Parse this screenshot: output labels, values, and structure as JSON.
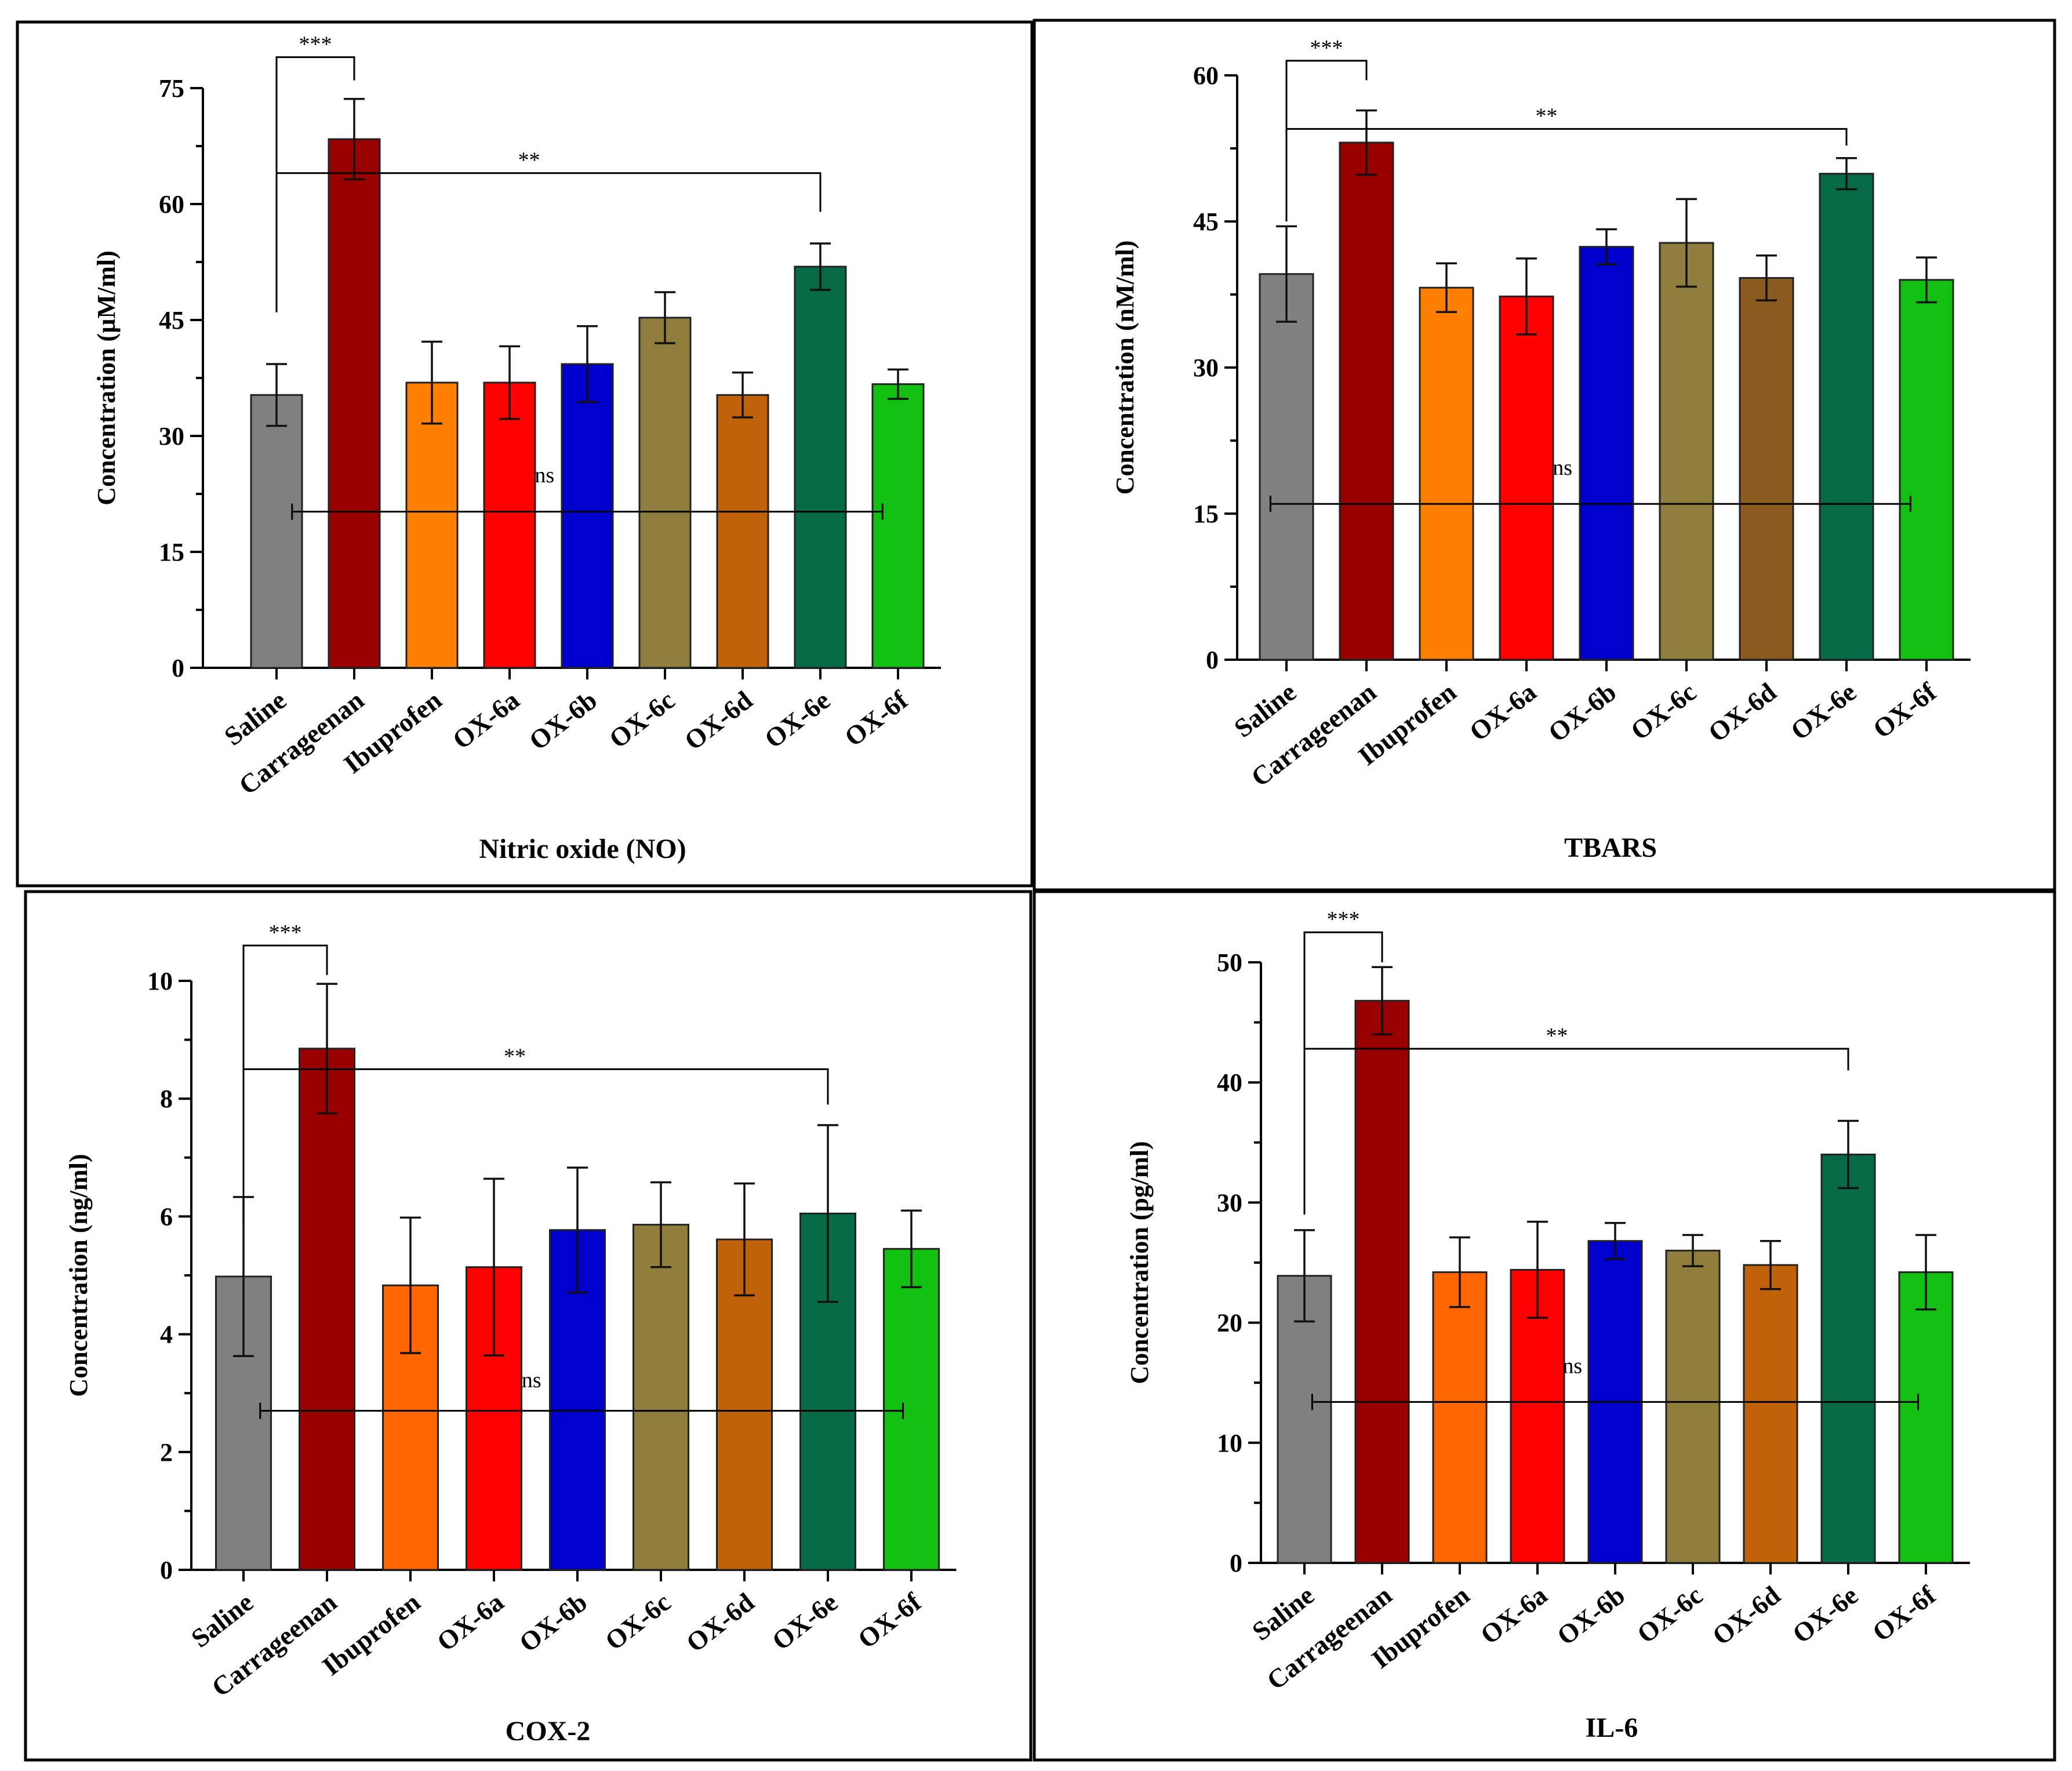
{
  "chart_data": [
    {
      "type": "bar",
      "title": "Nitric oxide (NO)",
      "ylabel": "Concentration (µM/ml)",
      "ylim": [
        0,
        75
      ],
      "yticks": [
        "0",
        "15",
        "30",
        "45",
        "60",
        "75"
      ],
      "categories": [
        "Saline",
        "Carrageenan",
        "Ibuprofen",
        "OX-6a",
        "OX-6b",
        "OX-6c",
        "OX-6d",
        "OX-6e",
        "OX-6f"
      ],
      "values": [
        35.3,
        68.4,
        36.9,
        36.9,
        39.3,
        45.3,
        35.3,
        51.9,
        36.7
      ],
      "error": [
        4,
        5.2,
        5.3,
        4.7,
        4.9,
        3.3,
        2.9,
        3.0,
        1.9
      ],
      "colors": [
        "#808080",
        "#990000",
        "#FF7F00",
        "#FF0000",
        "#0000CC",
        "#8E7D3C",
        "#C0620A",
        "#056A45",
        "#11C011"
      ],
      "annotations": [
        {
          "label": "***",
          "from": 0,
          "to": 1,
          "y": 79,
          "left_drop": 46,
          "right_drop": 76
        },
        {
          "label": "**",
          "from": 0,
          "to": 7,
          "y": 64,
          "left_drop": 46,
          "right_drop": 59
        },
        {
          "label": "ns",
          "from": 0.2,
          "to": 7.8,
          "y": 20.2,
          "label_y": 24
        }
      ]
    },
    {
      "type": "bar",
      "title": "TBARS",
      "ylabel": "Concentration (nM/ml)",
      "ylim": [
        0,
        60
      ],
      "yticks": [
        "0",
        "15",
        "30",
        "45",
        "60"
      ],
      "categories": [
        "Saline",
        "Carrageenan",
        "Ibuprofen",
        "OX-6a",
        "OX-6b",
        "OX-6c",
        "OX-6d",
        "OX-6e",
        "OX-6f"
      ],
      "values": [
        39.6,
        53.1,
        38.2,
        37.3,
        42.4,
        42.8,
        39.2,
        49.9,
        39.0
      ],
      "error": [
        4.9,
        3.3,
        2.5,
        3.9,
        1.8,
        4.5,
        2.3,
        1.6,
        2.3
      ],
      "colors": [
        "#808080",
        "#990000",
        "#FF8000",
        "#FF0000",
        "#0000CC",
        "#8E7D3C",
        "#8B5A1E",
        "#056A45",
        "#11C011"
      ],
      "annotations": [
        {
          "label": "***",
          "from": 0,
          "to": 1,
          "y": 61.5,
          "left_drop": 45,
          "right_drop": 59.5
        },
        {
          "label": "**",
          "from": 0,
          "to": 7,
          "y": 54.5,
          "left_drop": 45,
          "right_drop": 52.8
        },
        {
          "label": "ns",
          "from": -0.2,
          "to": 7.8,
          "y": 16,
          "label_y": 19
        }
      ]
    },
    {
      "type": "bar",
      "title": "COX-2",
      "ylabel": "Concentration (ng/ml)",
      "ylim": [
        0,
        10
      ],
      "yticks": [
        "0",
        "2",
        "4",
        "6",
        "8",
        "10"
      ],
      "categories": [
        "Saline",
        "Carrageenan",
        "Ibuprofen",
        "OX-6a",
        "OX-6b",
        "OX-6c",
        "OX-6d",
        "OX-6e",
        "OX-6f"
      ],
      "values": [
        4.98,
        8.85,
        4.83,
        5.14,
        5.77,
        5.86,
        5.61,
        6.05,
        5.45
      ],
      "error": [
        1.35,
        1.1,
        1.15,
        1.5,
        1.06,
        0.72,
        0.95,
        1.5,
        0.65
      ],
      "colors": [
        "#808080",
        "#990000",
        "#FF6600",
        "#FF0000",
        "#0000CC",
        "#8E7D3C",
        "#C0620A",
        "#056A45",
        "#11C011"
      ],
      "annotations": [
        {
          "label": "***",
          "from": 0,
          "to": 1,
          "y": 10.6,
          "left_drop": 5.9,
          "right_drop": 10.1
        },
        {
          "label": "**",
          "from": 0,
          "to": 7,
          "y": 8.5,
          "left_drop": 5.9,
          "right_drop": 7.9
        },
        {
          "label": "ns",
          "from": 0.2,
          "to": 7.9,
          "y": 2.7,
          "label_y": 3.1
        }
      ]
    },
    {
      "type": "bar",
      "title": "IL-6",
      "ylabel": "Concentration (pg/ml)",
      "ylim": [
        0,
        50
      ],
      "yticks": [
        "0",
        "10",
        "20",
        "30",
        "40",
        "50"
      ],
      "categories": [
        "Saline",
        "Carrageenan",
        "Ibuprofen",
        "OX-6a",
        "OX-6b",
        "OX-6c",
        "OX-6d",
        "OX-6e",
        "OX-6f"
      ],
      "values": [
        23.9,
        46.8,
        24.2,
        24.4,
        26.8,
        26.0,
        24.8,
        34.0,
        24.2
      ],
      "error": [
        3.8,
        2.8,
        2.9,
        4.0,
        1.5,
        1.3,
        2.0,
        2.8,
        3.1
      ],
      "colors": [
        "#808080",
        "#990000",
        "#FF6600",
        "#FF0000",
        "#0000CC",
        "#8E7D3C",
        "#C0620A",
        "#056A45",
        "#11C011"
      ],
      "annotations": [
        {
          "label": "***",
          "from": 0,
          "to": 1,
          "y": 52.5,
          "left_drop": 29,
          "right_drop": 50
        },
        {
          "label": "**",
          "from": 0,
          "to": 7,
          "y": 42.8,
          "left_drop": 29,
          "right_drop": 41.0
        },
        {
          "label": "ns",
          "from": 0.1,
          "to": 7.9,
          "y": 13.4,
          "label_y": 15.8
        }
      ]
    }
  ]
}
